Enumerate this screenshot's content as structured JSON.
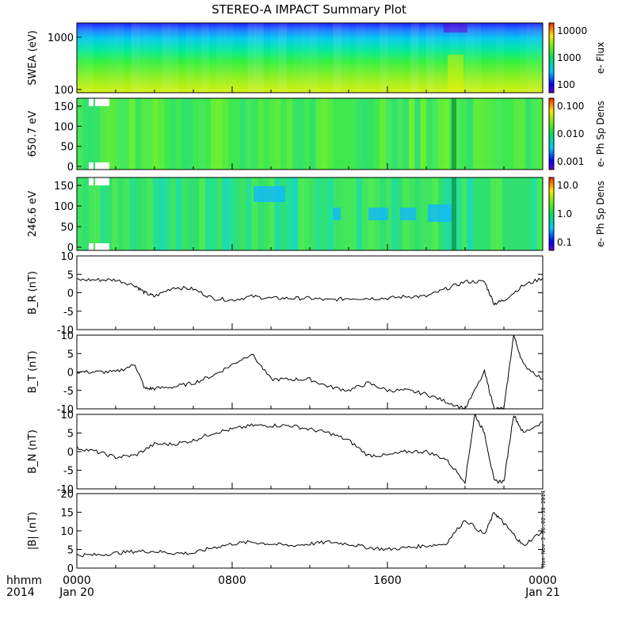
{
  "title": "STEREO-A IMPACT Summary Plot",
  "footer": {
    "row1": "hhmm",
    "row2": "2014",
    "stamp": "Mon Nov 3 06:02:38 2014"
  },
  "colors": {
    "line": "#000000",
    "background": "#ffffff"
  },
  "chart_data": [
    {
      "type": "heatmap",
      "ylabel": "SWEA (eV)",
      "yscale": "log",
      "ylim": [
        90,
        2000
      ],
      "yticks": [
        "1000",
        "100"
      ],
      "colorbar": {
        "label": "e- Flux",
        "scale": "log",
        "ticks": [
          "10000",
          "1000",
          "100"
        ],
        "range": [
          20,
          100000
        ]
      },
      "description_of_values": "energy spectrogram, flux decreasing with energy"
    },
    {
      "type": "heatmap",
      "ylabel": "650.7 eV",
      "ylim": [
        0,
        180
      ],
      "yticks": [
        "150",
        "100",
        "50",
        "0"
      ],
      "colorbar": {
        "label": "e- Ph Sp Dens",
        "scale": "log",
        "ticks": [
          "0.100",
          "0.010",
          "0.001"
        ],
        "range": [
          0.001,
          0.1
        ]
      }
    },
    {
      "type": "heatmap",
      "ylabel": "246.6 eV",
      "ylim": [
        0,
        180
      ],
      "yticks": [
        "150",
        "100",
        "50",
        "0"
      ],
      "colorbar": {
        "label": "e- Ph Sp Dens",
        "scale": "log",
        "ticks": [
          "10.0",
          "1.0",
          "0.1"
        ],
        "range": [
          0.1,
          10
        ]
      }
    },
    {
      "type": "line",
      "ylabel": "B_R (nT)",
      "ylim": [
        -10,
        10
      ],
      "yticks": [
        "10",
        "5",
        "0",
        "-5",
        "-10"
      ],
      "x": [
        0,
        1,
        2,
        3,
        3.5,
        4,
        5,
        6,
        7,
        8,
        9,
        10,
        11,
        12,
        13,
        14,
        15,
        16,
        17,
        18,
        19,
        20,
        21,
        21.5,
        22,
        23,
        24
      ],
      "values": [
        3.5,
        3.5,
        3.5,
        2,
        0,
        -1,
        1.5,
        1,
        -1.5,
        -2,
        -1,
        -1.5,
        -1.5,
        -1.5,
        -2,
        -1.5,
        -1.5,
        -1.5,
        -1,
        -1,
        1,
        3,
        3,
        -3,
        -2,
        2,
        4
      ]
    },
    {
      "type": "line",
      "ylabel": "B_T (nT)",
      "ylim": [
        -10,
        10
      ],
      "yticks": [
        "10",
        "5",
        "0",
        "-5",
        "-10"
      ],
      "x": [
        0,
        1,
        2,
        3,
        3.5,
        4,
        5,
        6,
        7,
        8,
        9,
        10,
        11,
        12,
        13,
        14,
        15,
        16,
        17,
        18,
        19,
        20,
        21,
        21.5,
        22,
        22.5,
        23,
        24
      ],
      "values": [
        0,
        0,
        0,
        2,
        -4.5,
        -4.5,
        -4,
        -3,
        -1,
        2,
        5,
        -2,
        -2,
        -2,
        -4,
        -5,
        -3,
        -5,
        -5,
        -6,
        -8,
        -10,
        0,
        -10,
        -10,
        10,
        2,
        -2
      ]
    },
    {
      "type": "line",
      "ylabel": "B_N (nT)",
      "ylim": [
        -10,
        10
      ],
      "yticks": [
        "10",
        "5",
        "0",
        "-5",
        "-10"
      ],
      "x": [
        0,
        1,
        2,
        3,
        4,
        5,
        6,
        7,
        8,
        9,
        10,
        11,
        12,
        13,
        14,
        15,
        16,
        17,
        18,
        19,
        20,
        20.5,
        21,
        21.5,
        22,
        22.5,
        23,
        24
      ],
      "values": [
        1,
        0,
        -1.5,
        -1,
        2,
        2,
        3,
        5,
        6,
        7,
        7,
        7,
        6,
        5,
        3,
        -1,
        -1,
        0,
        0,
        -2,
        -8,
        10,
        5,
        -8,
        -8,
        10,
        5,
        8
      ]
    },
    {
      "type": "line",
      "ylabel": "|B| (nT)",
      "ylim": [
        0,
        20
      ],
      "yticks": [
        "20",
        "15",
        "10",
        "5",
        "0"
      ],
      "x": [
        0,
        1,
        2,
        3,
        4,
        5,
        6,
        7,
        8,
        9,
        10,
        11,
        12,
        13,
        14,
        15,
        16,
        17,
        18,
        19,
        20,
        21,
        21.5,
        22,
        22.5,
        23,
        24
      ],
      "values": [
        3.5,
        3.5,
        4,
        4.5,
        4.5,
        4,
        4,
        5.5,
        6.5,
        7,
        6.5,
        6,
        6.5,
        7,
        6.5,
        5.5,
        5,
        5.5,
        6,
        6.5,
        13,
        9,
        15,
        12,
        9,
        6,
        10
      ],
      "xtick_labels": [
        "0000\nJan 20",
        "0800",
        "1600",
        "0000\nJan 21"
      ],
      "xlim": [
        0,
        24
      ]
    }
  ]
}
